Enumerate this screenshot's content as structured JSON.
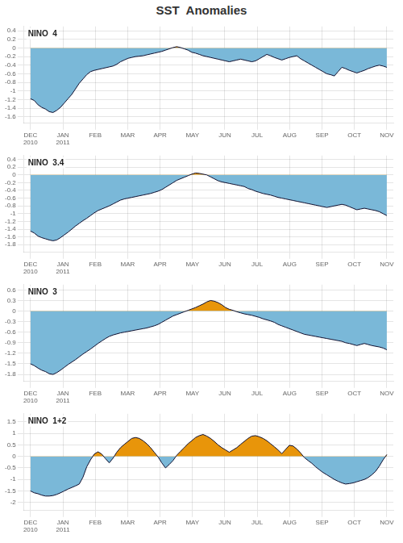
{
  "title": "SST  Anomalies",
  "chart_data": [
    {
      "type": "line",
      "title": "NINO  4",
      "color": "#101030",
      "colors": {
        "below": "#7ab8d8",
        "above": "#e8950a"
      },
      "grid": true,
      "xlim": [
        -0.2,
        11.2
      ],
      "xticks": [
        {
          "value": 0,
          "label": "DEC\n2010"
        },
        {
          "value": 1,
          "label": "JAN\n2011"
        },
        {
          "value": 2,
          "label": "FEB"
        },
        {
          "value": 3,
          "label": "MAR"
        },
        {
          "value": 4,
          "label": "APR"
        },
        {
          "value": 5,
          "label": "MAY"
        },
        {
          "value": 6,
          "label": "JUN"
        },
        {
          "value": 7,
          "label": "JUL"
        },
        {
          "value": 8,
          "label": "AUG"
        },
        {
          "value": 9,
          "label": "SEP"
        },
        {
          "value": 10,
          "label": "OCT"
        },
        {
          "value": 11,
          "label": "NOV"
        }
      ],
      "ylim": [
        -1.75,
        0.5
      ],
      "yticks": [
        0.4,
        0.2,
        0,
        -0.2,
        -0.4,
        -0.6,
        -0.8,
        -1.0,
        -1.2,
        -1.4,
        -1.6
      ],
      "x": [
        0,
        0.1158,
        0.2316,
        0.3474,
        0.4632,
        0.5789,
        0.6947,
        0.8105,
        0.9263,
        1.0421,
        1.1579,
        1.2737,
        1.3895,
        1.5053,
        1.6211,
        1.7368,
        1.8526,
        1.9684,
        2.0842,
        2.2,
        2.3158,
        2.4316,
        2.5474,
        2.6632,
        2.7789,
        2.8947,
        3.0105,
        3.1263,
        3.2421,
        3.3579,
        3.4737,
        3.5895,
        3.7053,
        3.8211,
        3.9368,
        4.0526,
        4.1684,
        4.2842,
        4.4,
        4.5158,
        4.6316,
        4.7474,
        4.8632,
        4.9789,
        5.0947,
        5.2105,
        5.3263,
        5.4421,
        5.5579,
        5.6737,
        5.7895,
        5.9053,
        6.0211,
        6.1368,
        6.2526,
        6.3684,
        6.4842,
        6.6,
        6.7158,
        6.8316,
        6.9474,
        7.0632,
        7.1789,
        7.2947,
        7.4105,
        7.5263,
        7.6421,
        7.7579,
        7.8737,
        7.9895,
        8.1053,
        8.2211,
        8.3368,
        8.4526,
        8.5684,
        8.6842,
        8.8,
        8.9158,
        9.0316,
        9.1474,
        9.2632,
        9.3789,
        9.4947,
        9.6105,
        9.7263,
        9.8421,
        9.9579,
        10.0737,
        10.1895,
        10.3053,
        10.4211,
        10.5368,
        10.6526,
        10.7684,
        10.8842,
        11
      ],
      "values": [
        -1.18,
        -1.22,
        -1.32,
        -1.38,
        -1.42,
        -1.48,
        -1.5,
        -1.45,
        -1.38,
        -1.28,
        -1.18,
        -1.08,
        -0.95,
        -0.82,
        -0.72,
        -0.62,
        -0.55,
        -0.52,
        -0.5,
        -0.48,
        -0.46,
        -0.44,
        -0.42,
        -0.38,
        -0.32,
        -0.28,
        -0.24,
        -0.22,
        -0.2,
        -0.19,
        -0.18,
        -0.16,
        -0.14,
        -0.12,
        -0.1,
        -0.08,
        -0.05,
        -0.02,
        0.01,
        0.03,
        0.01,
        -0.02,
        -0.05,
        -0.1,
        -0.12,
        -0.15,
        -0.18,
        -0.2,
        -0.22,
        -0.24,
        -0.26,
        -0.28,
        -0.3,
        -0.32,
        -0.3,
        -0.28,
        -0.26,
        -0.28,
        -0.3,
        -0.32,
        -0.3,
        -0.25,
        -0.2,
        -0.15,
        -0.18,
        -0.22,
        -0.25,
        -0.28,
        -0.25,
        -0.22,
        -0.2,
        -0.18,
        -0.25,
        -0.3,
        -0.35,
        -0.4,
        -0.45,
        -0.5,
        -0.55,
        -0.6,
        -0.62,
        -0.65,
        -0.55,
        -0.45,
        -0.48,
        -0.52,
        -0.55,
        -0.58,
        -0.55,
        -0.52,
        -0.48,
        -0.45,
        -0.42,
        -0.4,
        -0.42,
        -0.45
      ]
    },
    {
      "type": "line",
      "title": "NINO  3.4",
      "color": "#101030",
      "colors": {
        "below": "#7ab8d8",
        "above": "#e8950a"
      },
      "grid": true,
      "xlim": [
        -0.2,
        11.2
      ],
      "xticks": [
        {
          "value": 0,
          "label": "DEC\n2010"
        },
        {
          "value": 1,
          "label": "JAN\n2011"
        },
        {
          "value": 2,
          "label": "FEB"
        },
        {
          "value": 3,
          "label": "MAR"
        },
        {
          "value": 4,
          "label": "APR"
        },
        {
          "value": 5,
          "label": "MAY"
        },
        {
          "value": 6,
          "label": "JUN"
        },
        {
          "value": 7,
          "label": "JUL"
        },
        {
          "value": 8,
          "label": "AUG"
        },
        {
          "value": 9,
          "label": "SEP"
        },
        {
          "value": 10,
          "label": "OCT"
        },
        {
          "value": 11,
          "label": "NOV"
        }
      ],
      "ylim": [
        -2.0,
        0.5
      ],
      "yticks": [
        0.4,
        0.2,
        0,
        -0.2,
        -0.4,
        -0.6,
        -0.8,
        -1.0,
        -1.2,
        -1.4,
        -1.6,
        -1.8
      ],
      "x": [
        0,
        0.1158,
        0.2316,
        0.3474,
        0.4632,
        0.5789,
        0.6947,
        0.8105,
        0.9263,
        1.0421,
        1.1579,
        1.2737,
        1.3895,
        1.5053,
        1.6211,
        1.7368,
        1.8526,
        1.9684,
        2.0842,
        2.2,
        2.3158,
        2.4316,
        2.5474,
        2.6632,
        2.7789,
        2.8947,
        3.0105,
        3.1263,
        3.2421,
        3.3579,
        3.4737,
        3.5895,
        3.7053,
        3.8211,
        3.9368,
        4.0526,
        4.1684,
        4.2842,
        4.4,
        4.5158,
        4.6316,
        4.7474,
        4.8632,
        4.9789,
        5.0947,
        5.2105,
        5.3263,
        5.4421,
        5.5579,
        5.6737,
        5.7895,
        5.9053,
        6.0211,
        6.1368,
        6.2526,
        6.3684,
        6.4842,
        6.6,
        6.7158,
        6.8316,
        6.9474,
        7.0632,
        7.1789,
        7.2947,
        7.4105,
        7.5263,
        7.6421,
        7.7579,
        7.8737,
        7.9895,
        8.1053,
        8.2211,
        8.3368,
        8.4526,
        8.5684,
        8.6842,
        8.8,
        8.9158,
        9.0316,
        9.1474,
        9.2632,
        9.3789,
        9.4947,
        9.6105,
        9.7263,
        9.8421,
        9.9579,
        10.0737,
        10.1895,
        10.3053,
        10.4211,
        10.5368,
        10.6526,
        10.7684,
        10.8842,
        11
      ],
      "values": [
        -1.45,
        -1.5,
        -1.58,
        -1.62,
        -1.65,
        -1.68,
        -1.7,
        -1.68,
        -1.62,
        -1.55,
        -1.48,
        -1.4,
        -1.32,
        -1.25,
        -1.18,
        -1.12,
        -1.05,
        -0.98,
        -0.92,
        -0.88,
        -0.84,
        -0.8,
        -0.75,
        -0.7,
        -0.65,
        -0.62,
        -0.6,
        -0.58,
        -0.56,
        -0.54,
        -0.52,
        -0.5,
        -0.48,
        -0.45,
        -0.42,
        -0.38,
        -0.32,
        -0.26,
        -0.2,
        -0.14,
        -0.1,
        -0.06,
        -0.02,
        0.02,
        0.05,
        0.04,
        0.02,
        0.0,
        -0.05,
        -0.1,
        -0.15,
        -0.18,
        -0.2,
        -0.22,
        -0.24,
        -0.26,
        -0.28,
        -0.3,
        -0.35,
        -0.38,
        -0.42,
        -0.45,
        -0.48,
        -0.5,
        -0.52,
        -0.55,
        -0.58,
        -0.6,
        -0.62,
        -0.64,
        -0.66,
        -0.68,
        -0.7,
        -0.72,
        -0.74,
        -0.76,
        -0.78,
        -0.8,
        -0.82,
        -0.84,
        -0.82,
        -0.8,
        -0.78,
        -0.76,
        -0.78,
        -0.82,
        -0.86,
        -0.9,
        -0.88,
        -0.86,
        -0.88,
        -0.9,
        -0.92,
        -0.95,
        -1.0,
        -1.05
      ]
    },
    {
      "type": "line",
      "title": "NINO  3",
      "color": "#101030",
      "colors": {
        "below": "#7ab8d8",
        "above": "#e8950a"
      },
      "grid": true,
      "xlim": [
        -0.2,
        11.2
      ],
      "xticks": [
        {
          "value": 0,
          "label": "DEC\n2010"
        },
        {
          "value": 1,
          "label": "JAN\n2011"
        },
        {
          "value": 2,
          "label": "FEB"
        },
        {
          "value": 3,
          "label": "MAR"
        },
        {
          "value": 4,
          "label": "APR"
        },
        {
          "value": 5,
          "label": "MAY"
        },
        {
          "value": 6,
          "label": "JUN"
        },
        {
          "value": 7,
          "label": "JUL"
        },
        {
          "value": 8,
          "label": "AUG"
        },
        {
          "value": 9,
          "label": "SEP"
        },
        {
          "value": 10,
          "label": "OCT"
        },
        {
          "value": 11,
          "label": "NOV"
        }
      ],
      "ylim": [
        -2.0,
        0.75
      ],
      "yticks": [
        0.6,
        0.3,
        0,
        -0.3,
        -0.6,
        -0.9,
        -1.2,
        -1.5,
        -1.8
      ],
      "x": [
        0,
        0.1158,
        0.2316,
        0.3474,
        0.4632,
        0.5789,
        0.6947,
        0.8105,
        0.9263,
        1.0421,
        1.1579,
        1.2737,
        1.3895,
        1.5053,
        1.6211,
        1.7368,
        1.8526,
        1.9684,
        2.0842,
        2.2,
        2.3158,
        2.4316,
        2.5474,
        2.6632,
        2.7789,
        2.8947,
        3.0105,
        3.1263,
        3.2421,
        3.3579,
        3.4737,
        3.5895,
        3.7053,
        3.8211,
        3.9368,
        4.0526,
        4.1684,
        4.2842,
        4.4,
        4.5158,
        4.6316,
        4.7474,
        4.8632,
        4.9789,
        5.0947,
        5.2105,
        5.3263,
        5.4421,
        5.5579,
        5.6737,
        5.7895,
        5.9053,
        6.0211,
        6.1368,
        6.2526,
        6.3684,
        6.4842,
        6.6,
        6.7158,
        6.8316,
        6.9474,
        7.0632,
        7.1789,
        7.2947,
        7.4105,
        7.5263,
        7.6421,
        7.7579,
        7.8737,
        7.9895,
        8.1053,
        8.2211,
        8.3368,
        8.4526,
        8.5684,
        8.6842,
        8.8,
        8.9158,
        9.0316,
        9.1474,
        9.2632,
        9.3789,
        9.4947,
        9.6105,
        9.7263,
        9.8421,
        9.9579,
        10.0737,
        10.1895,
        10.3053,
        10.4211,
        10.5368,
        10.6526,
        10.7684,
        10.8842,
        11
      ],
      "values": [
        -1.5,
        -1.55,
        -1.62,
        -1.68,
        -1.72,
        -1.78,
        -1.8,
        -1.75,
        -1.68,
        -1.6,
        -1.52,
        -1.45,
        -1.38,
        -1.3,
        -1.22,
        -1.15,
        -1.08,
        -1.0,
        -0.92,
        -0.85,
        -0.78,
        -0.72,
        -0.68,
        -0.65,
        -0.62,
        -0.6,
        -0.58,
        -0.56,
        -0.54,
        -0.52,
        -0.5,
        -0.48,
        -0.45,
        -0.42,
        -0.38,
        -0.32,
        -0.26,
        -0.2,
        -0.14,
        -0.1,
        -0.06,
        -0.02,
        0.02,
        0.06,
        0.1,
        0.15,
        0.2,
        0.26,
        0.3,
        0.28,
        0.24,
        0.18,
        0.1,
        0.05,
        0.02,
        -0.02,
        -0.05,
        -0.08,
        -0.1,
        -0.12,
        -0.15,
        -0.18,
        -0.22,
        -0.25,
        -0.28,
        -0.32,
        -0.38,
        -0.42,
        -0.46,
        -0.5,
        -0.54,
        -0.58,
        -0.62,
        -0.66,
        -0.68,
        -0.7,
        -0.72,
        -0.74,
        -0.76,
        -0.78,
        -0.8,
        -0.82,
        -0.84,
        -0.86,
        -0.9,
        -0.92,
        -0.95,
        -0.98,
        -0.95,
        -0.92,
        -0.95,
        -0.98,
        -1.0,
        -1.02,
        -1.05,
        -1.1
      ]
    },
    {
      "type": "line",
      "title": "NINO  1+2",
      "color": "#101030",
      "colors": {
        "below": "#7ab8d8",
        "above": "#e8950a"
      },
      "grid": true,
      "xlim": [
        -0.2,
        11.2
      ],
      "xticks": [
        {
          "value": 0,
          "label": "DEC\n2010"
        },
        {
          "value": 1,
          "label": "JAN\n2011"
        },
        {
          "value": 2,
          "label": "FEB"
        },
        {
          "value": 3,
          "label": "MAR"
        },
        {
          "value": 4,
          "label": "APR"
        },
        {
          "value": 5,
          "label": "MAY"
        },
        {
          "value": 6,
          "label": "JUN"
        },
        {
          "value": 7,
          "label": "JUL"
        },
        {
          "value": 8,
          "label": "AUG"
        },
        {
          "value": 9,
          "label": "SEP"
        },
        {
          "value": 10,
          "label": "OCT"
        },
        {
          "value": 11,
          "label": "NOV"
        }
      ],
      "ylim": [
        -2.35,
        1.85
      ],
      "yticks": [
        1.5,
        1.0,
        0.5,
        0,
        -0.5,
        -1.0,
        -1.5,
        -2.0
      ],
      "x": [
        0,
        0.1158,
        0.2316,
        0.3474,
        0.4632,
        0.5789,
        0.6947,
        0.8105,
        0.9263,
        1.0421,
        1.1579,
        1.2737,
        1.3895,
        1.5053,
        1.6211,
        1.7368,
        1.8526,
        1.9684,
        2.0842,
        2.2,
        2.3158,
        2.4316,
        2.5474,
        2.6632,
        2.7789,
        2.8947,
        3.0105,
        3.1263,
        3.2421,
        3.3579,
        3.4737,
        3.5895,
        3.7053,
        3.8211,
        3.9368,
        4.0526,
        4.1684,
        4.2842,
        4.4,
        4.5158,
        4.6316,
        4.7474,
        4.8632,
        4.9789,
        5.0947,
        5.2105,
        5.3263,
        5.4421,
        5.5579,
        5.6737,
        5.7895,
        5.9053,
        6.0211,
        6.1368,
        6.2526,
        6.3684,
        6.4842,
        6.6,
        6.7158,
        6.8316,
        6.9474,
        7.0632,
        7.1789,
        7.2947,
        7.4105,
        7.5263,
        7.6421,
        7.7579,
        7.8737,
        7.9895,
        8.1053,
        8.2211,
        8.3368,
        8.4526,
        8.5684,
        8.6842,
        8.8,
        8.9158,
        9.0316,
        9.1474,
        9.2632,
        9.3789,
        9.4947,
        9.6105,
        9.7263,
        9.8421,
        9.9579,
        10.0737,
        10.1895,
        10.3053,
        10.4211,
        10.5368,
        10.6526,
        10.7684,
        10.8842,
        11
      ],
      "values": [
        -1.5,
        -1.58,
        -1.62,
        -1.68,
        -1.72,
        -1.72,
        -1.7,
        -1.65,
        -1.58,
        -1.5,
        -1.42,
        -1.35,
        -1.28,
        -1.2,
        -0.9,
        -0.45,
        -0.15,
        0.1,
        0.2,
        0.1,
        -0.1,
        -0.28,
        -0.08,
        0.18,
        0.38,
        0.52,
        0.65,
        0.78,
        0.82,
        0.78,
        0.68,
        0.55,
        0.38,
        0.18,
        -0.02,
        -0.28,
        -0.5,
        -0.35,
        -0.18,
        0.05,
        0.22,
        0.38,
        0.55,
        0.68,
        0.82,
        0.9,
        0.95,
        0.88,
        0.78,
        0.65,
        0.5,
        0.38,
        0.28,
        0.18,
        0.28,
        0.38,
        0.52,
        0.65,
        0.78,
        0.88,
        0.9,
        0.85,
        0.78,
        0.68,
        0.55,
        0.42,
        0.28,
        0.12,
        0.3,
        0.48,
        0.45,
        0.32,
        0.15,
        -0.05,
        -0.18,
        -0.3,
        -0.45,
        -0.58,
        -0.7,
        -0.8,
        -0.9,
        -1.0,
        -1.08,
        -1.15,
        -1.2,
        -1.18,
        -1.15,
        -1.1,
        -1.05,
        -1.0,
        -0.92,
        -0.8,
        -0.65,
        -0.42,
        -0.15,
        0.08
      ]
    }
  ]
}
